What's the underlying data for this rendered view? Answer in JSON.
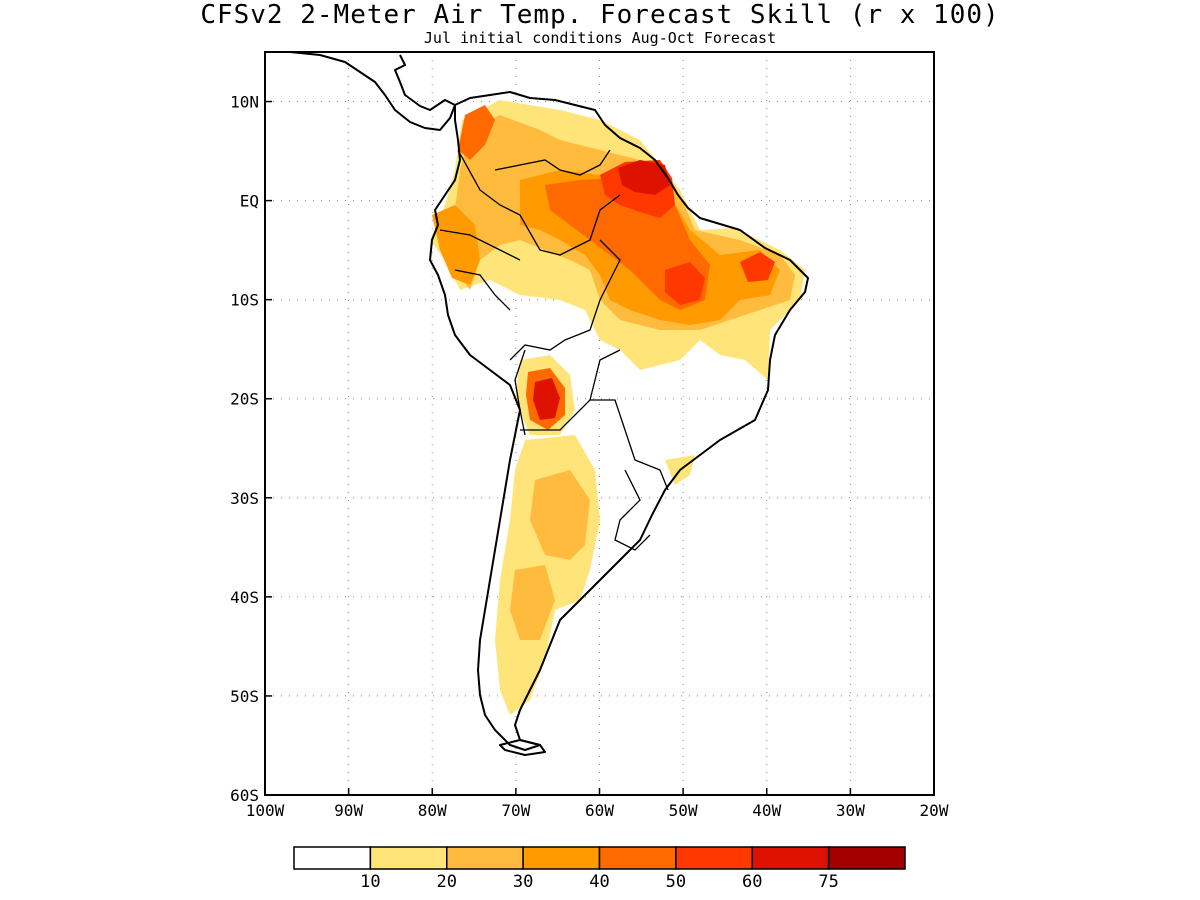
{
  "title": "CFSv2 2-Meter Air Temp. Forecast Skill (r x 100)",
  "subtitle": "Jul initial conditions  Aug-Oct Forecast",
  "map": {
    "region": "South America",
    "lon_range": [
      -100,
      -20
    ],
    "lat_range": [
      -60,
      15
    ],
    "lat_ticks": [
      {
        "lat": 10,
        "label": "10N"
      },
      {
        "lat": 0,
        "label": "EQ"
      },
      {
        "lat": -10,
        "label": "10S"
      },
      {
        "lat": -20,
        "label": "20S"
      },
      {
        "lat": -30,
        "label": "30S"
      },
      {
        "lat": -40,
        "label": "40S"
      },
      {
        "lat": -50,
        "label": "50S"
      },
      {
        "lat": -60,
        "label": "60S"
      }
    ],
    "lon_ticks": [
      {
        "lon": -100,
        "label": "100W"
      },
      {
        "lon": -90,
        "label": "90W"
      },
      {
        "lon": -80,
        "label": "80W"
      },
      {
        "lon": -70,
        "label": "70W"
      },
      {
        "lon": -60,
        "label": "60W"
      },
      {
        "lon": -50,
        "label": "50W"
      },
      {
        "lon": -40,
        "label": "40W"
      },
      {
        "lon": -30,
        "label": "30W"
      },
      {
        "lon": -20,
        "label": "20W"
      }
    ],
    "gridlines": true
  },
  "colorbar": {
    "colors": [
      "#ffffff",
      "#ffe47a",
      "#ffbb3d",
      "#ff9a00",
      "#ff6a00",
      "#ff3800",
      "#dd1200",
      "#a50000"
    ],
    "labels": [
      "10",
      "20",
      "30",
      "40",
      "50",
      "60",
      "75"
    ]
  }
}
